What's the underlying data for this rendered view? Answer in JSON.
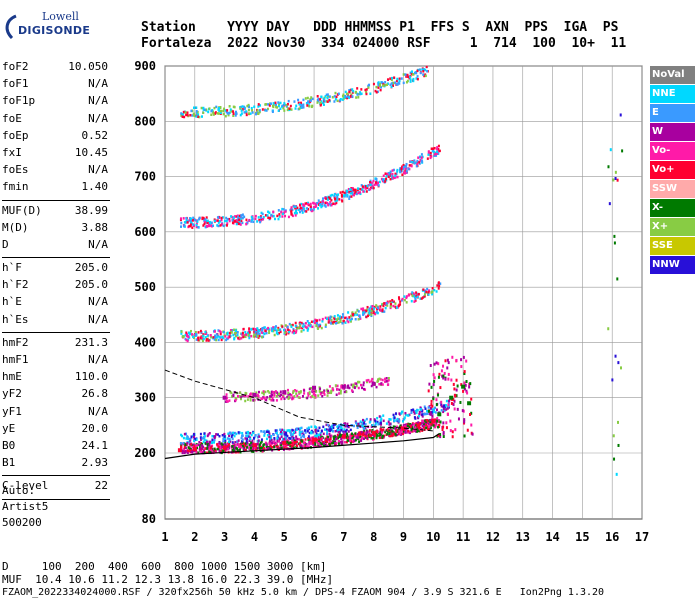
{
  "logo": {
    "line1": "Lowell",
    "line2": "DIGISONDE"
  },
  "header": {
    "line1": "Station    YYYY DAY   DDD HHMMSS P1  FFS S  AXN  PPS  IGA  PS",
    "line2": "Fortaleza  2022 Nov30  334 024000 RSF     1  714  100  10+  11"
  },
  "params_group1": [
    {
      "name": "foF2",
      "value": "10.050"
    },
    {
      "name": "foF1",
      "value": "N/A"
    },
    {
      "name": "foF1p",
      "value": "N/A"
    },
    {
      "name": "foE",
      "value": "N/A"
    },
    {
      "name": "foEp",
      "value": "0.52"
    },
    {
      "name": "fxI",
      "value": "10.45"
    },
    {
      "name": "foEs",
      "value": "N/A"
    },
    {
      "name": "fmin",
      "value": "1.40"
    }
  ],
  "params_group2": [
    {
      "name": "MUF(D)",
      "value": "38.99"
    },
    {
      "name": "M(D)",
      "value": "3.88"
    },
    {
      "name": "D",
      "value": "N/A"
    }
  ],
  "params_group3": [
    {
      "name": "h`F",
      "value": "205.0"
    },
    {
      "name": "h`F2",
      "value": "205.0"
    },
    {
      "name": "h`E",
      "value": "N/A"
    },
    {
      "name": "h`Es",
      "value": "N/A"
    }
  ],
  "params_group4": [
    {
      "name": "hmF2",
      "value": "231.3"
    },
    {
      "name": "hmF1",
      "value": "N/A"
    },
    {
      "name": "hmE",
      "value": "110.0"
    },
    {
      "name": "yF2",
      "value": "26.8"
    },
    {
      "name": "yF1",
      "value": "N/A"
    },
    {
      "name": "yE",
      "value": "20.0"
    },
    {
      "name": "B0",
      "value": "24.1"
    },
    {
      "name": "B1",
      "value": "2.93"
    }
  ],
  "params_group5": [
    {
      "name": "C-level",
      "value": "22"
    }
  ],
  "auto": {
    "line1": "Auto:",
    "line2": "Artist5",
    "line3": "500200"
  },
  "legend": [
    {
      "label": "NoVal",
      "color": "#808080"
    },
    {
      "label": "NNE",
      "color": "#00d8ff"
    },
    {
      "label": "E",
      "color": "#3a9aff"
    },
    {
      "label": "W",
      "color": "#a8009f"
    },
    {
      "label": "Vo-",
      "color": "#ff1aa8"
    },
    {
      "label": "Vo+",
      "color": "#ff0030"
    },
    {
      "label": "SSW",
      "color": "#ffaaaa"
    },
    {
      "label": "X-",
      "color": "#007a00"
    },
    {
      "label": "X+",
      "color": "#88cc44"
    },
    {
      "label": "SSE",
      "color": "#c8c800"
    },
    {
      "label": "NNW",
      "color": "#2810d8"
    }
  ],
  "chart_data": {
    "type": "scatter",
    "title": "",
    "xlabel": "",
    "ylabel": "",
    "xlim": [
      1,
      17
    ],
    "ylim": [
      80,
      900
    ],
    "x_ticks": [
      "1",
      "2",
      "3",
      "4",
      "5",
      "6",
      "7",
      "8",
      "9",
      "10",
      "11",
      "12",
      "13",
      "14",
      "15",
      "16",
      "17"
    ],
    "y_ticks": [
      "80",
      "200",
      "300",
      "400",
      "500",
      "600",
      "700",
      "800",
      "900"
    ],
    "grid": true,
    "legend_position": "right",
    "series": [
      {
        "name": "Vo+",
        "color": "#ff0030",
        "x": [
          1.5,
          2,
          3,
          4,
          5,
          6,
          7,
          8,
          9,
          9.5,
          10
        ],
        "y": [
          205,
          207,
          210,
          214,
          218,
          224,
          230,
          236,
          244,
          250,
          258
        ]
      },
      {
        "name": "X-",
        "color": "#007a00",
        "x": [
          10.2,
          10.6,
          11,
          11.2
        ],
        "y": [
          270,
          300,
          320,
          290
        ]
      },
      {
        "name": "W",
        "color": "#a8009f",
        "x": [
          3,
          4,
          5,
          6,
          7,
          8
        ],
        "y": [
          300,
          305,
          310,
          318,
          320,
          325
        ]
      }
    ],
    "model_curve": {
      "x": [
        1,
        2,
        3,
        4,
        5,
        6,
        7,
        8,
        9,
        10,
        10.2
      ],
      "y": [
        190,
        198,
        201,
        204,
        207,
        210,
        214,
        218,
        222,
        228,
        235
      ]
    }
  },
  "footer": {
    "line1": "D     100  200  400  600  800 1000 1500 3000 [km]",
    "line2": "MUF  10.4 10.6 11.2 12.3 13.8 16.0 22.3 39.0 [MHz]",
    "line3": "FZAOM_2022334024000.RSF / 320fx256h 50 kHz 5.0 km / DPS-4 FZAOM 904 / 3.9 S 321.6 E   Ion2Png 1.3.20"
  }
}
